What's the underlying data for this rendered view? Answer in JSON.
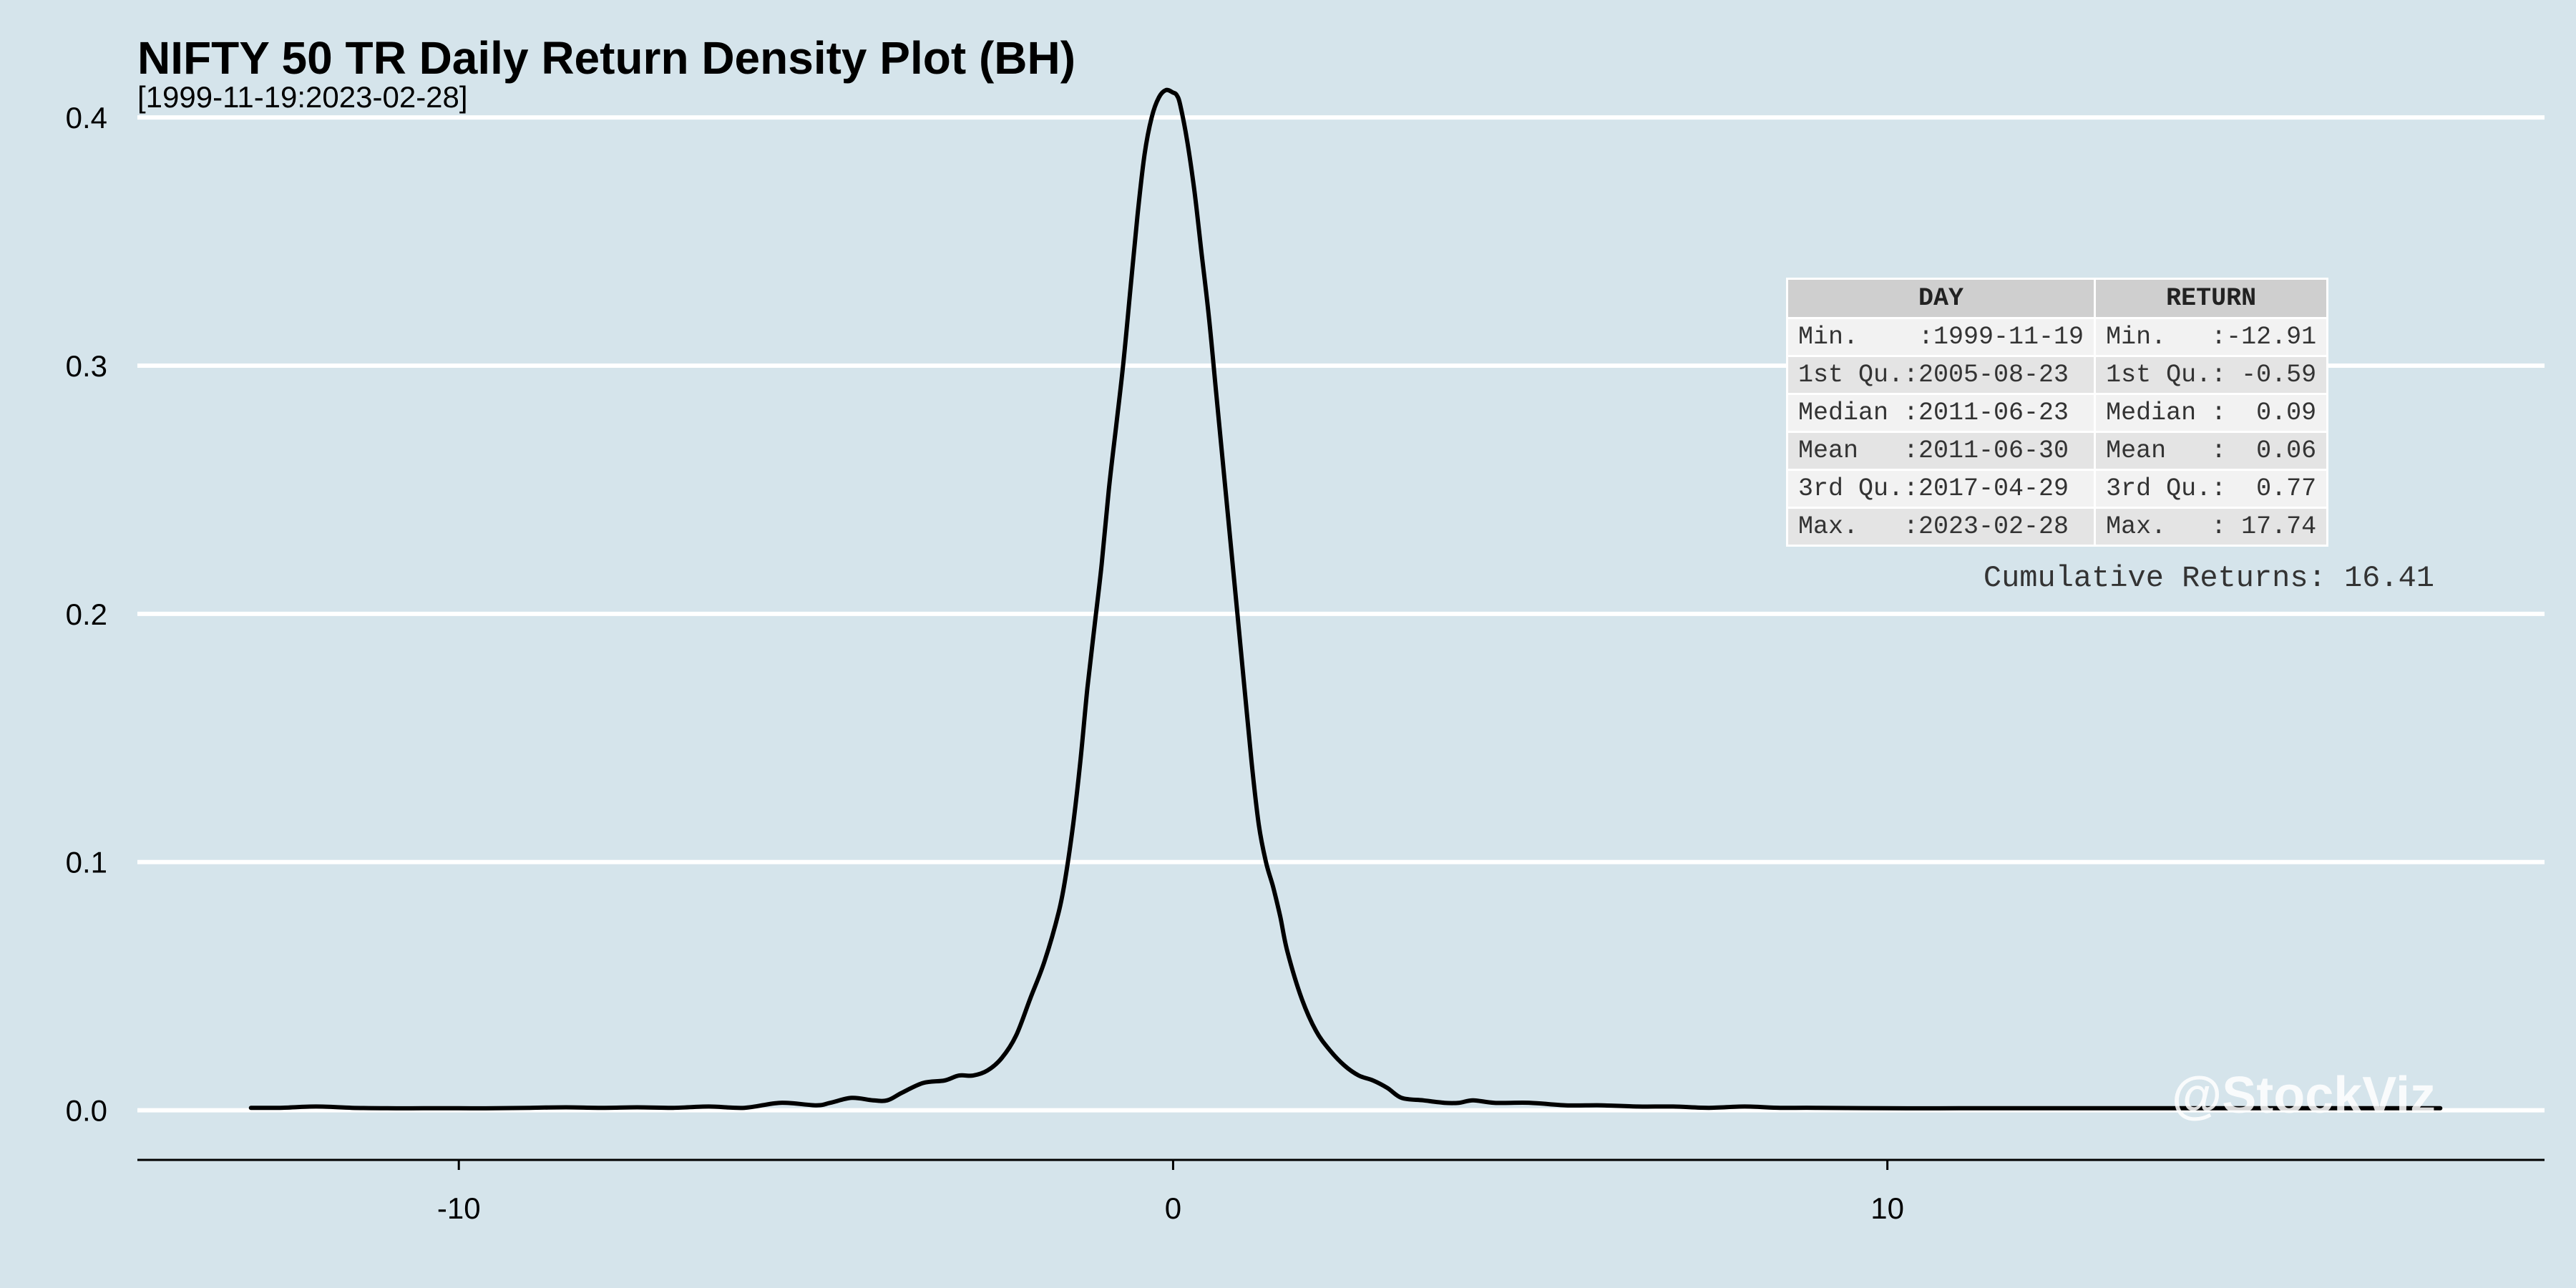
{
  "chart_data": {
    "type": "line",
    "title": "NIFTY 50 TR Daily Return Density Plot (BH)",
    "subtitle": "[1999-11-19:2023-02-28]",
    "xlabel": "",
    "ylabel": "",
    "xlim": [
      -14.5,
      19.2
    ],
    "ylim": [
      -0.02,
      0.43
    ],
    "x_ticks": [
      -10,
      0,
      10
    ],
    "x_tick_labels": [
      "-10",
      "0",
      "10"
    ],
    "y_ticks": [
      0.0,
      0.1,
      0.2,
      0.3,
      0.4
    ],
    "y_tick_labels": [
      "0.0",
      "0.1",
      "0.2",
      "0.3",
      "0.4"
    ],
    "grid": "horizontal",
    "colors": {
      "background": "#d5e4eb",
      "line": "#000000",
      "grid": "#ffffff"
    },
    "series": [
      {
        "x": [
          -12.91,
          -12.5,
          -12.0,
          -11.5,
          -11.0,
          -10.5,
          -10.0,
          -9.5,
          -9.0,
          -8.5,
          -8.0,
          -7.5,
          -7.0,
          -6.5,
          -6.0,
          -5.5,
          -5.0,
          -4.8,
          -4.5,
          -4.2,
          -4.0,
          -3.8,
          -3.5,
          -3.2,
          -3.0,
          -2.8,
          -2.6,
          -2.4,
          -2.2,
          -2.0,
          -1.8,
          -1.6,
          -1.5,
          -1.4,
          -1.3,
          -1.2,
          -1.1,
          -1.0,
          -0.9,
          -0.8,
          -0.7,
          -0.6,
          -0.5,
          -0.4,
          -0.3,
          -0.2,
          -0.1,
          0.0,
          0.05,
          0.1,
          0.2,
          0.3,
          0.4,
          0.5,
          0.6,
          0.7,
          0.8,
          0.9,
          1.0,
          1.1,
          1.2,
          1.3,
          1.4,
          1.5,
          1.6,
          1.8,
          2.0,
          2.2,
          2.4,
          2.6,
          2.8,
          3.0,
          3.2,
          3.5,
          3.8,
          4.0,
          4.2,
          4.5,
          5.0,
          5.5,
          6.0,
          6.5,
          7.0,
          7.5,
          8.0,
          8.5,
          9.0,
          10.0,
          11.0,
          12.0,
          13.0,
          14.0,
          15.0,
          16.0,
          17.0,
          17.74
        ],
        "y": [
          0.001,
          0.001,
          0.0015,
          0.001,
          0.0008,
          0.0008,
          0.0008,
          0.0008,
          0.001,
          0.0012,
          0.001,
          0.0012,
          0.001,
          0.0015,
          0.001,
          0.003,
          0.002,
          0.003,
          0.005,
          0.004,
          0.004,
          0.007,
          0.011,
          0.012,
          0.014,
          0.014,
          0.016,
          0.021,
          0.03,
          0.045,
          0.06,
          0.08,
          0.095,
          0.115,
          0.14,
          0.17,
          0.195,
          0.22,
          0.25,
          0.275,
          0.3,
          0.33,
          0.36,
          0.385,
          0.4,
          0.408,
          0.411,
          0.41,
          0.409,
          0.405,
          0.39,
          0.37,
          0.345,
          0.32,
          0.29,
          0.26,
          0.23,
          0.2,
          0.17,
          0.14,
          0.115,
          0.1,
          0.09,
          0.078,
          0.064,
          0.045,
          0.032,
          0.024,
          0.018,
          0.014,
          0.012,
          0.009,
          0.005,
          0.004,
          0.003,
          0.003,
          0.004,
          0.003,
          0.003,
          0.002,
          0.002,
          0.0015,
          0.0015,
          0.001,
          0.0015,
          0.001,
          0.001,
          0.0008,
          0.0008,
          0.0008,
          0.0008,
          0.0008,
          0.0008,
          0.0008,
          0.0008,
          0.0008
        ]
      }
    ]
  },
  "stats_table": {
    "headers": [
      "DAY",
      "RETURN"
    ],
    "rows": [
      [
        "Min.    :1999-11-19",
        "Min.   :-12.91"
      ],
      [
        "1st Qu.:2005-08-23",
        "1st Qu.: -0.59"
      ],
      [
        "Median :2011-06-23",
        "Median :  0.09"
      ],
      [
        "Mean   :2011-06-30",
        "Mean   :  0.06"
      ],
      [
        "3rd Qu.:2017-04-29",
        "3rd Qu.:  0.77"
      ],
      [
        "Max.   :2023-02-28",
        "Max.   : 17.74"
      ]
    ]
  },
  "cumulative_returns": "Cumulative Returns: 16.41",
  "watermark": "@StockViz"
}
